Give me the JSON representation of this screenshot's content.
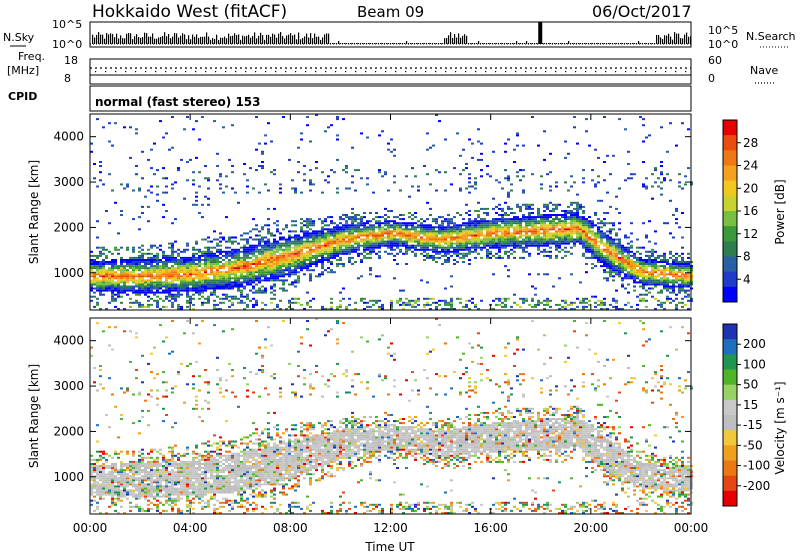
{
  "header": {
    "radar": "Hokkaido West (fitACF)",
    "beam": "Beam 09",
    "date": "06/Oct/2017"
  },
  "noise_panel": {
    "left_label": "N.Sky",
    "left_ticks": [
      "10^5",
      "10^0"
    ],
    "right_label": "N.Search",
    "right_ticks": [
      "10^5",
      "10^0"
    ]
  },
  "freq_panel": {
    "left_label_1": "Freq.",
    "left_label_2": "[MHz]",
    "left_ticks": [
      "18",
      "8"
    ],
    "right_label": "Nave",
    "right_ticks": [
      "60",
      "0"
    ]
  },
  "cpid": {
    "label": "CPID",
    "value": "normal (fast stereo) 153"
  },
  "chart_data": [
    {
      "type": "heatmap",
      "quantity": "power",
      "ylabel": "Slant Range [km]",
      "xlabel": "Time UT",
      "x_ticks": [
        "00:00",
        "04:00",
        "08:00",
        "12:00",
        "16:00",
        "20:00",
        "00:00"
      ],
      "xlim_hours": [
        0,
        24
      ],
      "y_ticks": [
        1000,
        2000,
        3000,
        4000
      ],
      "ylim_km": [
        180,
        4500
      ],
      "colorbar": {
        "label": "Power [dB]",
        "ticks": [
          "4",
          "8",
          "12",
          "16",
          "20",
          "24",
          "28"
        ],
        "colors": [
          "#0000ff",
          "#1e3cc8",
          "#285fa5",
          "#2e7d4f",
          "#3a9a3a",
          "#78c040",
          "#c8d232",
          "#f0c81e",
          "#f5a01e",
          "#f07814",
          "#eb4b0f",
          "#e60000"
        ]
      },
      "echo_band": {
        "hours": [
          0,
          2,
          4,
          6,
          7.5,
          8.5,
          10,
          12,
          14,
          16,
          18,
          19.5,
          20.5,
          22,
          24
        ],
        "center_km": [
          900,
          900,
          950,
          1100,
          1300,
          1450,
          1700,
          1850,
          1700,
          1850,
          1900,
          1950,
          1500,
          1000,
          900
        ],
        "width_km": [
          700,
          750,
          800,
          850,
          900,
          800,
          650,
          550,
          600,
          650,
          700,
          700,
          750,
          600,
          550
        ]
      }
    },
    {
      "type": "heatmap",
      "quantity": "velocity",
      "ylabel": "Slant Range [km]",
      "xlabel": "Time UT",
      "x_ticks": [
        "00:00",
        "04:00",
        "08:00",
        "12:00",
        "16:00",
        "20:00",
        "00:00"
      ],
      "xlim_hours": [
        0,
        24
      ],
      "y_ticks": [
        1000,
        2000,
        3000,
        4000
      ],
      "ylim_km": [
        180,
        4500
      ],
      "colorbar": {
        "label": "Velocity [m s⁻¹]",
        "ticks": [
          "200",
          "100",
          "50",
          "15",
          "-15",
          "-50",
          "-100",
          "-200"
        ],
        "colors": [
          "#1e32b4",
          "#1e6ebe",
          "#1e9650",
          "#50b428",
          "#96d264",
          "#c8c8c8",
          "#bebebe",
          "#f0c83c",
          "#f0a01e",
          "#eb7814",
          "#e64614",
          "#e60000"
        ]
      }
    }
  ]
}
